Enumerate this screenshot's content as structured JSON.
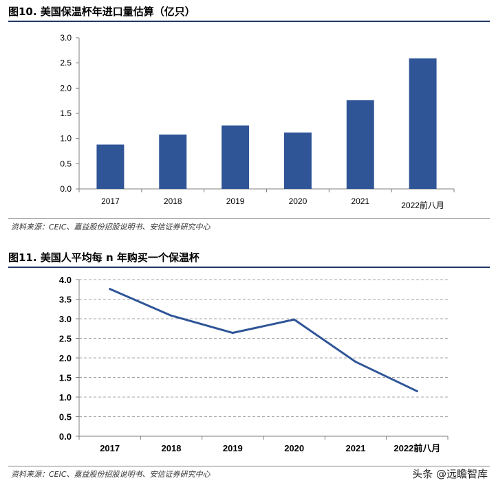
{
  "figures": [
    {
      "title": "图10. 美国保温杯年进口量估算（亿只）",
      "source": "资料来源：CEIC、嘉益股份招股说明书、安信证券研究中心"
    },
    {
      "title": "图11. 美国人平均每 n 年购买一个保温杯",
      "source": "资料来源：CEIC、嘉益股份招股说明书、安信证券研究中心"
    }
  ],
  "watermark": "头条 @远瞻智库",
  "colors": {
    "bar": "#2f5597",
    "line": "#2f5597",
    "rule": "#1f3864",
    "grid": "#a6a6a6"
  },
  "chart_data": [
    {
      "type": "bar",
      "title": "",
      "categories": [
        "2017",
        "2018",
        "2019",
        "2020",
        "2021",
        "2022前八月"
      ],
      "values": [
        0.88,
        1.08,
        1.26,
        1.12,
        1.76,
        2.59
      ],
      "ylim": [
        0,
        3.0
      ],
      "yticks": [
        "0.0",
        "0.5",
        "1.0",
        "1.5",
        "2.0",
        "2.5",
        "3.0"
      ],
      "grid": false,
      "legend": "none"
    },
    {
      "type": "line",
      "title": "",
      "categories": [
        "2017",
        "2018",
        "2019",
        "2020",
        "2021",
        "2022前八月"
      ],
      "values": [
        3.76,
        3.08,
        2.64,
        2.98,
        1.9,
        1.15
      ],
      "ylim": [
        0,
        4.0
      ],
      "yticks": [
        "0.0",
        "0.5",
        "1.0",
        "1.5",
        "2.0",
        "2.5",
        "3.0",
        "3.5",
        "4.0"
      ],
      "grid": true,
      "legend": "none"
    }
  ]
}
